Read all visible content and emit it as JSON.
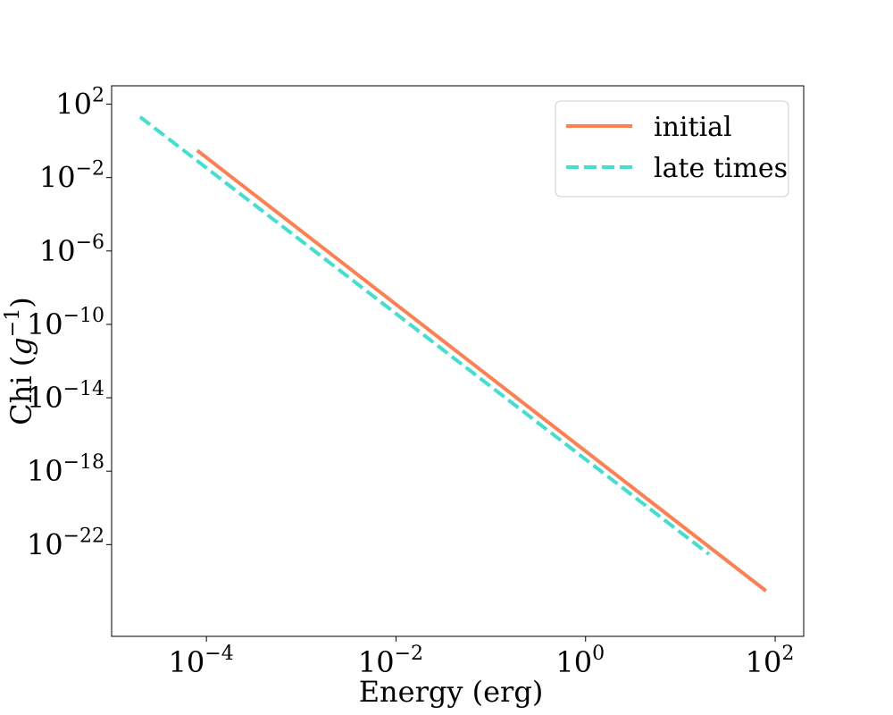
{
  "chart_data": {
    "type": "line",
    "scale": {
      "x": "log",
      "y": "log"
    },
    "xlabel": "Energy (erg)",
    "ylabel": {
      "text": "Chi (",
      "symbol": "g",
      "exponent": "−1",
      "close": ")"
    },
    "xlim": [
      1e-05,
      200
    ],
    "ylim": [
      1e-27,
      1000.0
    ],
    "x_ticks": [
      {
        "base": "10",
        "exp": "−4",
        "value": 0.0001
      },
      {
        "base": "10",
        "exp": "−2",
        "value": 0.01
      },
      {
        "base": "10",
        "exp": "0",
        "value": 1
      },
      {
        "base": "10",
        "exp": "2",
        "value": 100
      }
    ],
    "y_ticks": [
      {
        "base": "10",
        "exp": "2",
        "value": 100
      },
      {
        "base": "10",
        "exp": "−2",
        "value": 0.01
      },
      {
        "base": "10",
        "exp": "−6",
        "value": 1e-06
      },
      {
        "base": "10",
        "exp": "−10",
        "value": 1e-10
      },
      {
        "base": "10",
        "exp": "−14",
        "value": 1e-14
      },
      {
        "base": "10",
        "exp": "−18",
        "value": 1e-18
      },
      {
        "base": "10",
        "exp": "−22",
        "value": 1e-22
      }
    ],
    "series": [
      {
        "name": "initial",
        "color": "#FF7F50",
        "dash": "solid",
        "x": [
          8e-05,
          80
        ],
        "y": [
          0.3,
          3e-25
        ]
      },
      {
        "name": "late times",
        "color": "#40E0D0",
        "dash": "dashed",
        "x": [
          2e-05,
          20
        ],
        "y": [
          20,
          3e-23
        ]
      }
    ],
    "legend": {
      "position": "top-right",
      "entries": [
        "initial",
        "late times"
      ]
    },
    "grid": false
  }
}
